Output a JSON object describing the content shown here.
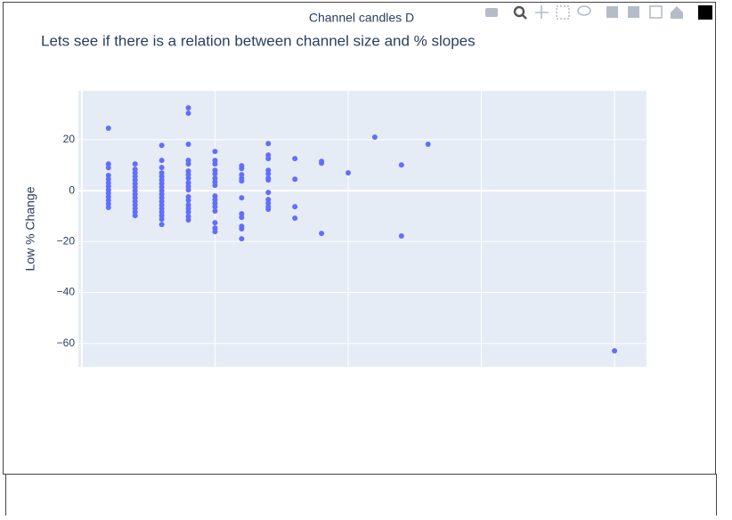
{
  "chart_data": {
    "type": "scatter",
    "title": "Channel candles D",
    "subtitle": "Lets see if there is a relation between channel size and % slopes",
    "y_label": "Low % Change",
    "xlim": [
      -0.13,
      21.2
    ],
    "xticks": [
      0,
      5,
      10,
      15,
      20
    ],
    "ylim": [
      -69.2,
      39.2
    ],
    "yticks": [
      20,
      0,
      {
        "value": -20,
        "label": "−20"
      },
      {
        "value": -40,
        "label": "−40"
      },
      {
        "value": -60,
        "label": "−60"
      }
    ],
    "grid": true,
    "series": [
      {
        "color": "#636efa",
        "x": [
          1,
          1,
          1,
          1,
          1,
          1,
          1,
          1,
          1,
          1,
          1,
          1,
          1,
          2,
          2,
          2,
          2,
          2,
          2,
          2,
          2,
          2,
          2,
          2,
          2,
          2,
          2,
          2,
          3,
          3,
          3,
          3,
          3,
          3,
          3,
          3,
          3,
          3,
          3,
          3,
          3,
          3,
          3,
          3,
          3,
          3,
          4,
          4,
          4,
          4,
          4,
          4,
          4,
          4,
          4,
          4,
          4,
          4,
          4,
          4,
          4,
          4,
          4,
          4,
          5,
          5,
          5,
          5,
          5,
          5,
          5,
          5,
          5,
          5,
          5,
          5,
          5,
          5,
          5,
          5,
          6,
          6,
          6,
          6,
          6,
          6,
          6,
          6,
          6,
          6,
          6,
          7,
          7,
          7,
          7,
          7,
          7,
          7,
          7,
          7,
          7,
          7,
          7,
          8,
          8,
          8,
          8,
          9,
          9,
          9,
          10,
          11,
          12,
          12,
          13,
          20
        ],
        "values": [
          24.5,
          10.5,
          9,
          6,
          4.5,
          3,
          1.7,
          0.3,
          -1,
          -2.4,
          -3.8,
          -5.2,
          -6.6,
          10.5,
          8.4,
          7,
          5.6,
          4.2,
          2.8,
          1.4,
          0,
          -1.4,
          -2.8,
          -4.2,
          -5.6,
          -7,
          -8.4,
          -9.8,
          17.8,
          11.9,
          9.1,
          7,
          5.6,
          4.2,
          2.8,
          1.4,
          0,
          -1.4,
          -2.8,
          -4.2,
          -5.6,
          -7,
          -8.4,
          -9.8,
          -11.2,
          -13.3,
          32.5,
          30.4,
          18.2,
          11.9,
          10.5,
          7.7,
          6.3,
          4.9,
          3.1,
          1.7,
          0.3,
          -2.4,
          -3.8,
          -5.6,
          -7,
          -8.4,
          -10.1,
          -11.5,
          15.4,
          11.9,
          10.5,
          8,
          6.6,
          4.9,
          3.5,
          2.1,
          -2.1,
          -3.5,
          -4.9,
          -6.3,
          -8,
          -12.6,
          -14.7,
          -16.1,
          9.8,
          8.7,
          6.3,
          4.9,
          3.8,
          -2.8,
          -9.1,
          -10.5,
          -14,
          -15,
          -18.9,
          18.5,
          14,
          12.6,
          8,
          6.6,
          4.9,
          4.2,
          -0.7,
          -3.5,
          -4.9,
          -6.3,
          -7.3,
          12.6,
          4.5,
          -6.3,
          -10.8,
          11.5,
          10.8,
          -16.8,
          7,
          21,
          10.1,
          -17.8,
          18.2,
          -62.9
        ]
      }
    ]
  }
}
